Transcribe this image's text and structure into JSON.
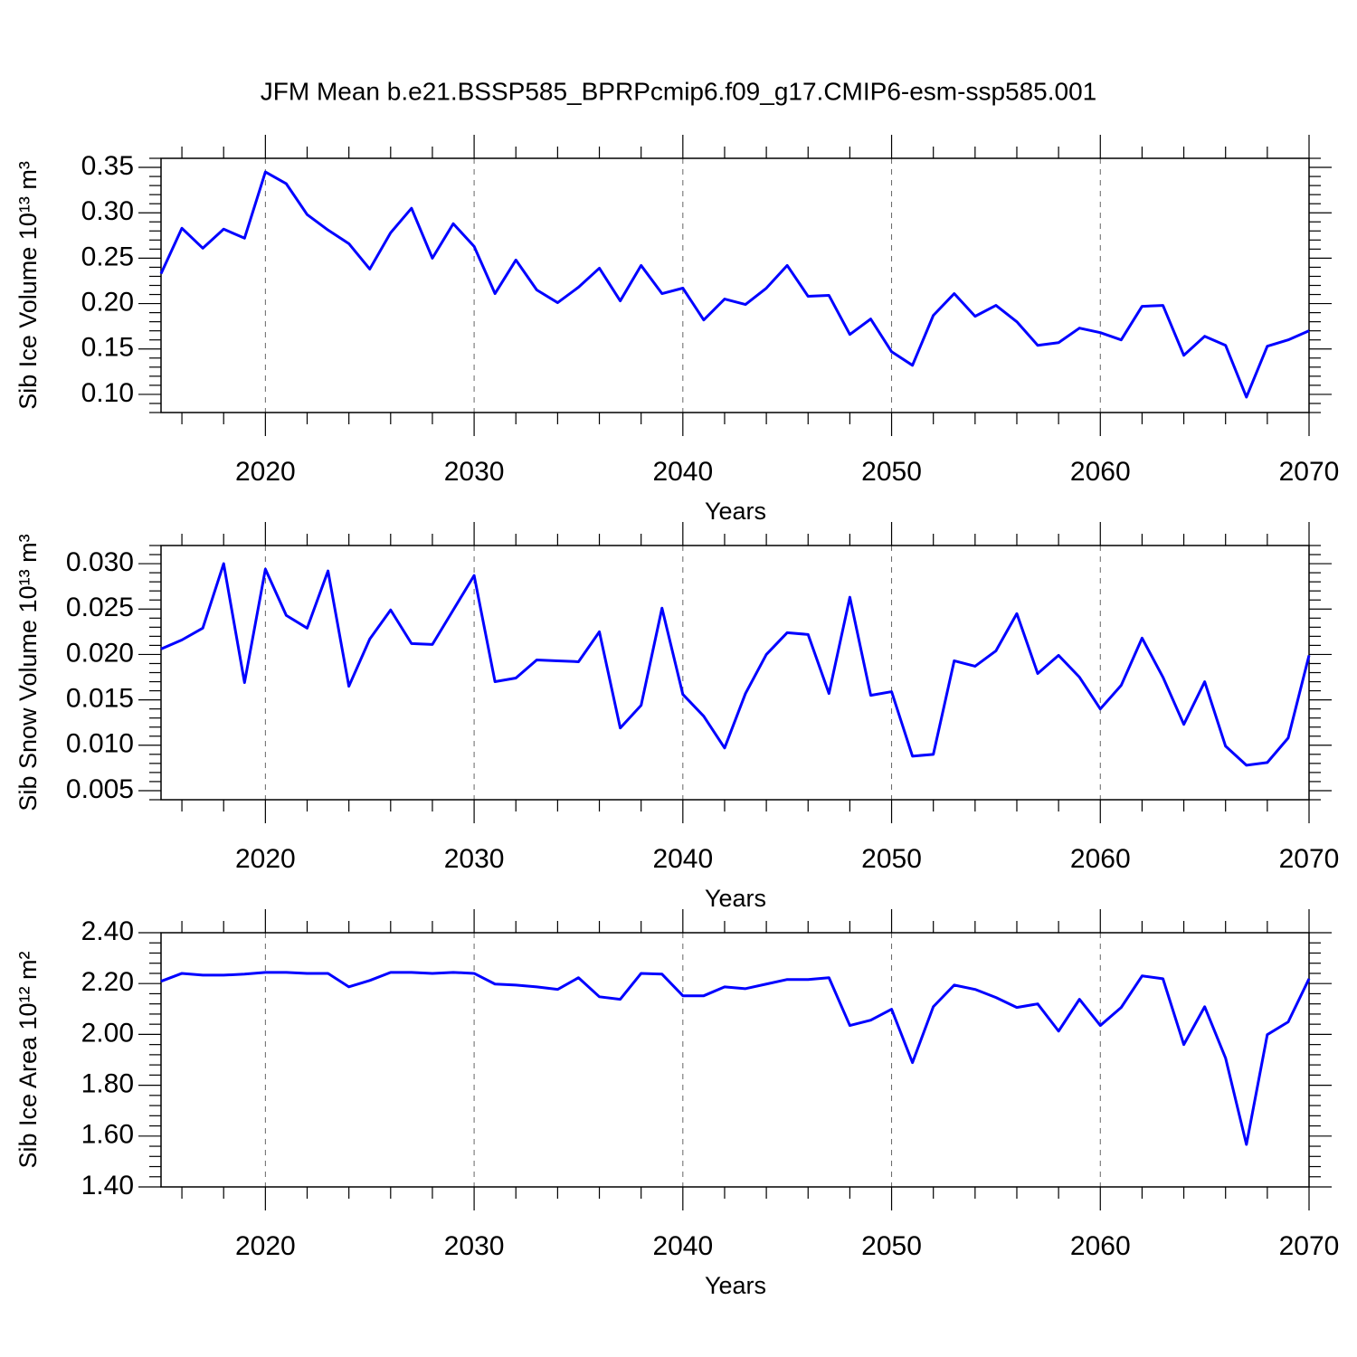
{
  "title": "JFM Mean b.e21.BSSP585_BPRPcmip6.f09_g17.CMIP6-esm-ssp585.001",
  "chart_data": [
    {
      "type": "line",
      "ylabel": "Sib Ice Volume 10¹³ m³",
      "xlabel": "Years",
      "x": [
        2015,
        2016,
        2017,
        2018,
        2019,
        2020,
        2021,
        2022,
        2023,
        2024,
        2025,
        2026,
        2027,
        2028,
        2029,
        2030,
        2031,
        2032,
        2033,
        2034,
        2035,
        2036,
        2037,
        2038,
        2039,
        2040,
        2041,
        2042,
        2043,
        2044,
        2045,
        2046,
        2047,
        2048,
        2049,
        2050,
        2051,
        2052,
        2053,
        2054,
        2055,
        2056,
        2057,
        2058,
        2059,
        2060,
        2061,
        2062,
        2063,
        2064,
        2065,
        2066,
        2067,
        2068,
        2069,
        2070
      ],
      "series": [
        {
          "color": "#0000ff",
          "values": [
            0.233,
            0.283,
            0.261,
            0.282,
            0.272,
            0.345,
            0.332,
            0.298,
            0.281,
            0.266,
            0.238,
            0.278,
            0.305,
            0.25,
            0.288,
            0.263,
            0.211,
            0.248,
            0.215,
            0.201,
            0.218,
            0.239,
            0.203,
            0.242,
            0.211,
            0.217,
            0.182,
            0.205,
            0.199,
            0.217,
            0.242,
            0.208,
            0.209,
            0.166,
            0.183,
            0.147,
            0.132,
            0.187,
            0.211,
            0.186,
            0.198,
            0.18,
            0.154,
            0.157,
            0.173,
            0.168,
            0.16,
            0.197,
            0.198,
            0.143,
            0.164,
            0.154,
            0.097,
            0.153,
            0.16,
            0.17
          ]
        }
      ],
      "xlim": [
        2015,
        2070
      ],
      "xticks": [
        2020,
        2030,
        2040,
        2050,
        2060,
        2070
      ],
      "ylim": [
        0.08,
        0.36
      ],
      "yticks": [
        {
          "value": 0.1,
          "label": "0.10"
        },
        0.15,
        {
          "value": 0.2,
          "label": "0.20"
        },
        0.25,
        {
          "value": 0.3,
          "label": "0.30"
        },
        0.35
      ],
      "grid": true
    },
    {
      "type": "line",
      "ylabel": "Sib Snow Volume 10¹³ m³",
      "xlabel": "Years",
      "x": [
        2015,
        2016,
        2017,
        2018,
        2019,
        2020,
        2021,
        2022,
        2023,
        2024,
        2025,
        2026,
        2027,
        2028,
        2029,
        2030,
        2031,
        2032,
        2033,
        2034,
        2035,
        2036,
        2037,
        2038,
        2039,
        2040,
        2041,
        2042,
        2043,
        2044,
        2045,
        2046,
        2047,
        2048,
        2049,
        2050,
        2051,
        2052,
        2053,
        2054,
        2055,
        2056,
        2057,
        2058,
        2059,
        2060,
        2061,
        2062,
        2063,
        2064,
        2065,
        2066,
        2067,
        2068,
        2069,
        2070
      ],
      "series": [
        {
          "color": "#0000ff",
          "values": [
            0.0206,
            0.0216,
            0.0229,
            0.03,
            0.0169,
            0.0294,
            0.0243,
            0.0229,
            0.0292,
            0.0165,
            0.0217,
            0.0249,
            0.0212,
            0.0211,
            0.0249,
            0.0287,
            0.017,
            0.0174,
            0.0194,
            0.0193,
            0.0192,
            0.0225,
            0.0119,
            0.0144,
            0.0251,
            0.0156,
            0.0132,
            0.0097,
            0.0157,
            0.02,
            0.0224,
            0.0222,
            0.0157,
            0.0263,
            0.0155,
            0.0159,
            0.0088,
            0.009,
            0.0193,
            0.0187,
            0.0204,
            0.0245,
            0.0179,
            0.0199,
            0.0175,
            0.014,
            0.0166,
            0.0218,
            0.0175,
            0.0123,
            0.017,
            0.0099,
            0.0078,
            0.0081,
            0.0108,
            0.0199
          ]
        }
      ],
      "xlim": [
        2015,
        2070
      ],
      "xticks": [
        2020,
        2030,
        2040,
        2050,
        2060,
        2070
      ],
      "ylim": [
        0.004,
        0.032
      ],
      "yticks": [
        0.005,
        {
          "value": 0.01,
          "label": "0.010"
        },
        0.015,
        {
          "value": 0.02,
          "label": "0.020"
        },
        0.025,
        {
          "value": 0.03,
          "label": "0.030"
        }
      ],
      "grid": true
    },
    {
      "type": "line",
      "ylabel": "Sib Ice Area 10¹² m²",
      "xlabel": "Years",
      "x": [
        2015,
        2016,
        2017,
        2018,
        2019,
        2020,
        2021,
        2022,
        2023,
        2024,
        2025,
        2026,
        2027,
        2028,
        2029,
        2030,
        2031,
        2032,
        2033,
        2034,
        2035,
        2036,
        2037,
        2038,
        2039,
        2040,
        2041,
        2042,
        2043,
        2044,
        2045,
        2046,
        2047,
        2048,
        2049,
        2050,
        2051,
        2052,
        2053,
        2054,
        2055,
        2056,
        2057,
        2058,
        2059,
        2060,
        2061,
        2062,
        2063,
        2064,
        2065,
        2066,
        2067,
        2068,
        2069,
        2070
      ],
      "series": [
        {
          "color": "#0000ff",
          "values": [
            2.209,
            2.24,
            2.233,
            2.233,
            2.237,
            2.244,
            2.244,
            2.24,
            2.24,
            2.187,
            2.212,
            2.244,
            2.244,
            2.24,
            2.244,
            2.24,
            2.198,
            2.194,
            2.187,
            2.177,
            2.223,
            2.148,
            2.138,
            2.24,
            2.237,
            2.152,
            2.152,
            2.187,
            2.18,
            2.198,
            2.216,
            2.216,
            2.223,
            2.035,
            2.056,
            2.099,
            1.889,
            2.109,
            2.194,
            2.177,
            2.145,
            2.106,
            2.12,
            2.013,
            2.138,
            2.035,
            2.106,
            2.23,
            2.219,
            1.96,
            2.109,
            1.907,
            1.567,
            1.999,
            2.049,
            2.219
          ]
        }
      ],
      "xlim": [
        2015,
        2070
      ],
      "xticks": [
        2020,
        2030,
        2040,
        2050,
        2060,
        2070
      ],
      "ylim": [
        1.4,
        2.4
      ],
      "yticks": [
        {
          "value": 1.4,
          "label": "1.40"
        },
        {
          "value": 1.6,
          "label": "1.60"
        },
        {
          "value": 1.8,
          "label": "1.80"
        },
        {
          "value": 2.0,
          "label": "2.00"
        },
        {
          "value": 2.2,
          "label": "2.20"
        },
        {
          "value": 2.4,
          "label": "2.40"
        }
      ],
      "grid": true
    }
  ]
}
